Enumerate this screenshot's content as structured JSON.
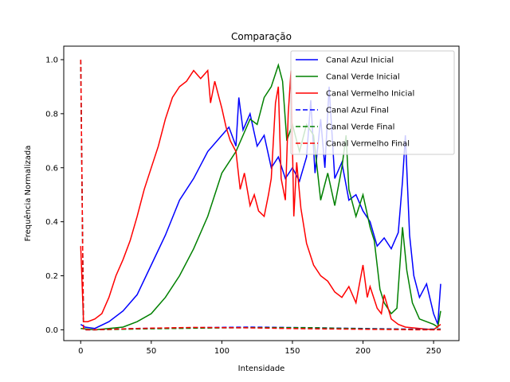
{
  "chart_data": {
    "type": "line",
    "title": "Comparação",
    "xlabel": "Intensidade",
    "ylabel": "Frequência Normalizada",
    "xlim": [
      -12,
      268
    ],
    "ylim": [
      -0.04,
      1.05
    ],
    "xticks": [
      0,
      50,
      100,
      150,
      200,
      250
    ],
    "yticks": [
      0.0,
      0.2,
      0.4,
      0.6,
      0.8,
      1.0
    ],
    "xtick_labels": [
      "0",
      "50",
      "100",
      "150",
      "200",
      "250"
    ],
    "ytick_labels": [
      "0.0",
      "0.2",
      "0.4",
      "0.6",
      "0.8",
      "1.0"
    ],
    "grid": false,
    "legend_position": "top-right",
    "series": [
      {
        "name": "Canal Azul Inicial",
        "color": "#0000ff",
        "dash": "solid",
        "points": [
          [
            0,
            0.02
          ],
          [
            3,
            0.01
          ],
          [
            10,
            0.005
          ],
          [
            20,
            0.03
          ],
          [
            30,
            0.07
          ],
          [
            40,
            0.13
          ],
          [
            50,
            0.24
          ],
          [
            60,
            0.35
          ],
          [
            70,
            0.48
          ],
          [
            80,
            0.56
          ],
          [
            90,
            0.66
          ],
          [
            100,
            0.72
          ],
          [
            105,
            0.75
          ],
          [
            110,
            0.68
          ],
          [
            112,
            0.86
          ],
          [
            115,
            0.74
          ],
          [
            120,
            0.8
          ],
          [
            125,
            0.68
          ],
          [
            130,
            0.72
          ],
          [
            135,
            0.6
          ],
          [
            140,
            0.64
          ],
          [
            145,
            0.56
          ],
          [
            150,
            0.6
          ],
          [
            155,
            0.55
          ],
          [
            160,
            0.64
          ],
          [
            163,
            0.85
          ],
          [
            166,
            0.58
          ],
          [
            170,
            0.78
          ],
          [
            173,
            0.6
          ],
          [
            176,
            0.9
          ],
          [
            180,
            0.56
          ],
          [
            185,
            0.62
          ],
          [
            190,
            0.48
          ],
          [
            195,
            0.5
          ],
          [
            200,
            0.44
          ],
          [
            205,
            0.4
          ],
          [
            210,
            0.31
          ],
          [
            215,
            0.34
          ],
          [
            220,
            0.3
          ],
          [
            225,
            0.36
          ],
          [
            228,
            0.55
          ],
          [
            230,
            0.72
          ],
          [
            233,
            0.35
          ],
          [
            236,
            0.2
          ],
          [
            240,
            0.12
          ],
          [
            245,
            0.17
          ],
          [
            250,
            0.06
          ],
          [
            253,
            0.02
          ],
          [
            255,
            0.17
          ]
        ]
      },
      {
        "name": "Canal Verde Inicial",
        "color": "#008000",
        "dash": "solid",
        "points": [
          [
            0,
            0.005
          ],
          [
            10,
            0.0
          ],
          [
            20,
            0.005
          ],
          [
            30,
            0.01
          ],
          [
            40,
            0.03
          ],
          [
            50,
            0.06
          ],
          [
            60,
            0.12
          ],
          [
            70,
            0.2
          ],
          [
            80,
            0.3
          ],
          [
            90,
            0.42
          ],
          [
            100,
            0.58
          ],
          [
            110,
            0.66
          ],
          [
            115,
            0.72
          ],
          [
            120,
            0.78
          ],
          [
            125,
            0.76
          ],
          [
            130,
            0.86
          ],
          [
            135,
            0.9
          ],
          [
            140,
            0.98
          ],
          [
            143,
            0.92
          ],
          [
            146,
            0.7
          ],
          [
            150,
            0.76
          ],
          [
            155,
            0.66
          ],
          [
            160,
            0.76
          ],
          [
            165,
            0.72
          ],
          [
            170,
            0.48
          ],
          [
            175,
            0.58
          ],
          [
            180,
            0.46
          ],
          [
            185,
            0.6
          ],
          [
            188,
            0.72
          ],
          [
            190,
            0.52
          ],
          [
            195,
            0.42
          ],
          [
            200,
            0.5
          ],
          [
            205,
            0.38
          ],
          [
            208,
            0.33
          ],
          [
            212,
            0.15
          ],
          [
            215,
            0.1
          ],
          [
            220,
            0.06
          ],
          [
            224,
            0.08
          ],
          [
            228,
            0.38
          ],
          [
            231,
            0.22
          ],
          [
            235,
            0.1
          ],
          [
            240,
            0.04
          ],
          [
            245,
            0.03
          ],
          [
            250,
            0.02
          ],
          [
            253,
            0.01
          ],
          [
            255,
            0.07
          ]
        ]
      },
      {
        "name": "Canal Vermelho Inicial",
        "color": "#ff0000",
        "dash": "solid",
        "points": [
          [
            0,
            0.31
          ],
          [
            2,
            0.03
          ],
          [
            5,
            0.03
          ],
          [
            10,
            0.04
          ],
          [
            15,
            0.06
          ],
          [
            20,
            0.12
          ],
          [
            25,
            0.2
          ],
          [
            30,
            0.26
          ],
          [
            35,
            0.33
          ],
          [
            40,
            0.42
          ],
          [
            45,
            0.52
          ],
          [
            50,
            0.6
          ],
          [
            55,
            0.68
          ],
          [
            60,
            0.78
          ],
          [
            65,
            0.86
          ],
          [
            70,
            0.9
          ],
          [
            75,
            0.92
          ],
          [
            80,
            0.96
          ],
          [
            85,
            0.93
          ],
          [
            90,
            0.96
          ],
          [
            92,
            0.84
          ],
          [
            95,
            0.92
          ],
          [
            100,
            0.82
          ],
          [
            103,
            0.75
          ],
          [
            106,
            0.7
          ],
          [
            110,
            0.66
          ],
          [
            113,
            0.52
          ],
          [
            116,
            0.58
          ],
          [
            120,
            0.46
          ],
          [
            123,
            0.5
          ],
          [
            126,
            0.44
          ],
          [
            130,
            0.42
          ],
          [
            133,
            0.5
          ],
          [
            135,
            0.56
          ],
          [
            138,
            0.84
          ],
          [
            140,
            0.9
          ],
          [
            142,
            0.56
          ],
          [
            145,
            0.48
          ],
          [
            147,
            0.8
          ],
          [
            149,
            0.96
          ],
          [
            151,
            0.42
          ],
          [
            153,
            0.62
          ],
          [
            156,
            0.45
          ],
          [
            160,
            0.32
          ],
          [
            165,
            0.24
          ],
          [
            170,
            0.2
          ],
          [
            175,
            0.18
          ],
          [
            180,
            0.14
          ],
          [
            185,
            0.12
          ],
          [
            190,
            0.16
          ],
          [
            195,
            0.1
          ],
          [
            200,
            0.24
          ],
          [
            203,
            0.12
          ],
          [
            205,
            0.16
          ],
          [
            210,
            0.08
          ],
          [
            213,
            0.06
          ],
          [
            215,
            0.13
          ],
          [
            220,
            0.04
          ],
          [
            225,
            0.02
          ],
          [
            230,
            0.01
          ],
          [
            240,
            0.005
          ],
          [
            250,
            0.0
          ],
          [
            255,
            0.02
          ]
        ]
      },
      {
        "name": "Canal Azul Final",
        "color": "#0000ff",
        "dash": "dashed",
        "points": [
          [
            0,
            1.0
          ],
          [
            2,
            0.0
          ],
          [
            10,
            0.0
          ],
          [
            40,
            0.005
          ],
          [
            80,
            0.008
          ],
          [
            120,
            0.01
          ],
          [
            160,
            0.008
          ],
          [
            200,
            0.005
          ],
          [
            240,
            0.002
          ],
          [
            255,
            0.003
          ]
        ]
      },
      {
        "name": "Canal Verde Final",
        "color": "#008000",
        "dash": "dashed",
        "points": [
          [
            0,
            1.0
          ],
          [
            2,
            0.0
          ],
          [
            10,
            0.0
          ],
          [
            40,
            0.003
          ],
          [
            80,
            0.006
          ],
          [
            120,
            0.008
          ],
          [
            160,
            0.008
          ],
          [
            200,
            0.004
          ],
          [
            240,
            0.001
          ],
          [
            255,
            0.002
          ]
        ]
      },
      {
        "name": "Canal Vermelho Final",
        "color": "#ff0000",
        "dash": "dashed",
        "points": [
          [
            0,
            1.0
          ],
          [
            2,
            0.0
          ],
          [
            10,
            0.0
          ],
          [
            40,
            0.005
          ],
          [
            80,
            0.009
          ],
          [
            120,
            0.007
          ],
          [
            160,
            0.004
          ],
          [
            200,
            0.002
          ],
          [
            240,
            0.0
          ],
          [
            255,
            0.0
          ]
        ]
      }
    ]
  }
}
